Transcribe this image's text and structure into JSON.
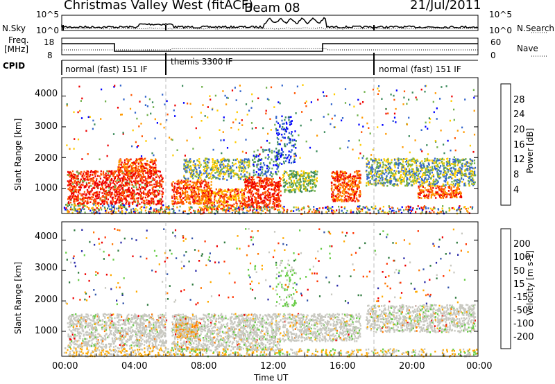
{
  "header": {
    "station": "Christmas Valley West (fitACF)",
    "beam": "Beam 08",
    "date": "21/Jul/2011"
  },
  "noise_panel": {
    "left_label": "N.Sky",
    "left_ticks": [
      "10^5",
      "10^0"
    ],
    "right_label": "N.Search",
    "right_ticks": [
      "10^5",
      "10^0"
    ]
  },
  "freq_panel": {
    "left_label_line1": "Freq.",
    "left_label_line2": "[MHz]",
    "left_ticks": [
      "18",
      "8"
    ],
    "right_label": "Nave",
    "right_ticks": [
      "60",
      "0"
    ]
  },
  "cpid": {
    "label": "CPID",
    "segments": [
      "normal (fast) 151 IF",
      "themis 3300 IF",
      "normal (fast) 151 IF"
    ]
  },
  "colors": {
    "power_scale": [
      "#0000ff",
      "#3366cc",
      "#3a8a5a",
      "#6fb04a",
      "#ffcc00",
      "#ff9900",
      "#ff5500",
      "#ee0000"
    ],
    "velocity_scale": [
      "#2a2aa8",
      "#3355aa",
      "#2e7a3e",
      "#66cc44",
      "#c8c8c0",
      "#ffaa00",
      "#ff7700",
      "#ff3300",
      "#ee0000"
    ]
  },
  "chart_data": [
    {
      "type": "heatmap",
      "title": "Power",
      "xlabel": "Time UT",
      "ylabel": "Slant Range [km]",
      "x_ticks": [
        "00:00",
        "04:00",
        "08:00",
        "12:00",
        "16:00",
        "20:00",
        "00:00"
      ],
      "y_ticks": [
        "1000",
        "2000",
        "3000",
        "4000"
      ],
      "colorbar_label": "Power [dB]",
      "colorbar_ticks": [
        "28",
        "24",
        "20",
        "16",
        "12",
        "8",
        "4"
      ]
    },
    {
      "type": "heatmap",
      "title": "Velocity",
      "xlabel": "Time UT",
      "ylabel": "Slant Range [km]",
      "x_ticks": [
        "00:00",
        "04:00",
        "08:00",
        "12:00",
        "16:00",
        "20:00",
        "00:00"
      ],
      "y_ticks": [
        "1000",
        "2000",
        "3000",
        "4000"
      ],
      "colorbar_label": "Velocity [m s-1]",
      "colorbar_ticks": [
        "200",
        "100",
        "50",
        "15",
        "-15",
        "-50",
        "-100",
        "-200"
      ]
    }
  ]
}
